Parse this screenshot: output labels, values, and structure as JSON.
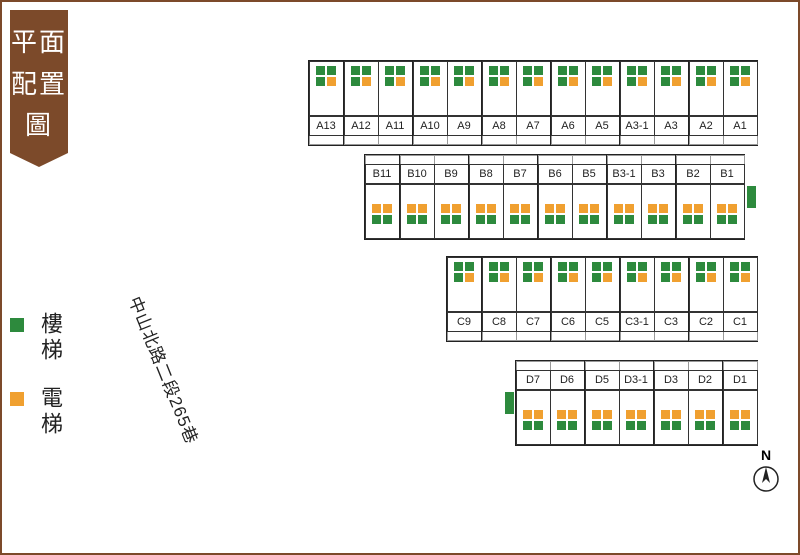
{
  "title": "平面配置圖",
  "road_label": "中山北路二段265巷",
  "compass_label": "N",
  "legend": {
    "stair": {
      "label": "樓梯",
      "color": "#2d8a3d"
    },
    "elevator": {
      "label": "電梯",
      "color": "#f0a030"
    }
  },
  "colors": {
    "frame": "#7c4a2a",
    "line": "#333333",
    "bg": "#ffffff",
    "text": "#222222"
  },
  "rows": [
    {
      "id": "A",
      "reverse": false,
      "ext_stair": null,
      "groups": [
        [
          "A13"
        ],
        [
          "A12",
          "A11"
        ],
        [
          "A10",
          "A9"
        ],
        [
          "A8",
          "A7"
        ],
        [
          "A6",
          "A5"
        ],
        [
          "A3-1",
          "A3"
        ],
        [
          "A2",
          "A1"
        ]
      ]
    },
    {
      "id": "B",
      "reverse": true,
      "ext_stair": "right",
      "groups": [
        [
          "B11"
        ],
        [
          "B10",
          "B9"
        ],
        [
          "B8",
          "B7"
        ],
        [
          "B6",
          "B5"
        ],
        [
          "B3-1",
          "B3"
        ],
        [
          "B2",
          "B1"
        ]
      ]
    },
    {
      "id": "C",
      "reverse": false,
      "ext_stair": null,
      "groups": [
        [
          "C9"
        ],
        [
          "C8",
          "C7"
        ],
        [
          "C6",
          "C5"
        ],
        [
          "C3-1",
          "C3"
        ],
        [
          "C2",
          "C1"
        ]
      ]
    },
    {
      "id": "D",
      "reverse": true,
      "ext_stair": "left",
      "groups": [
        [
          "D7",
          "D6"
        ],
        [
          "D5",
          "D3-1"
        ],
        [
          "D3",
          "D2"
        ],
        [
          "D1"
        ]
      ]
    }
  ]
}
